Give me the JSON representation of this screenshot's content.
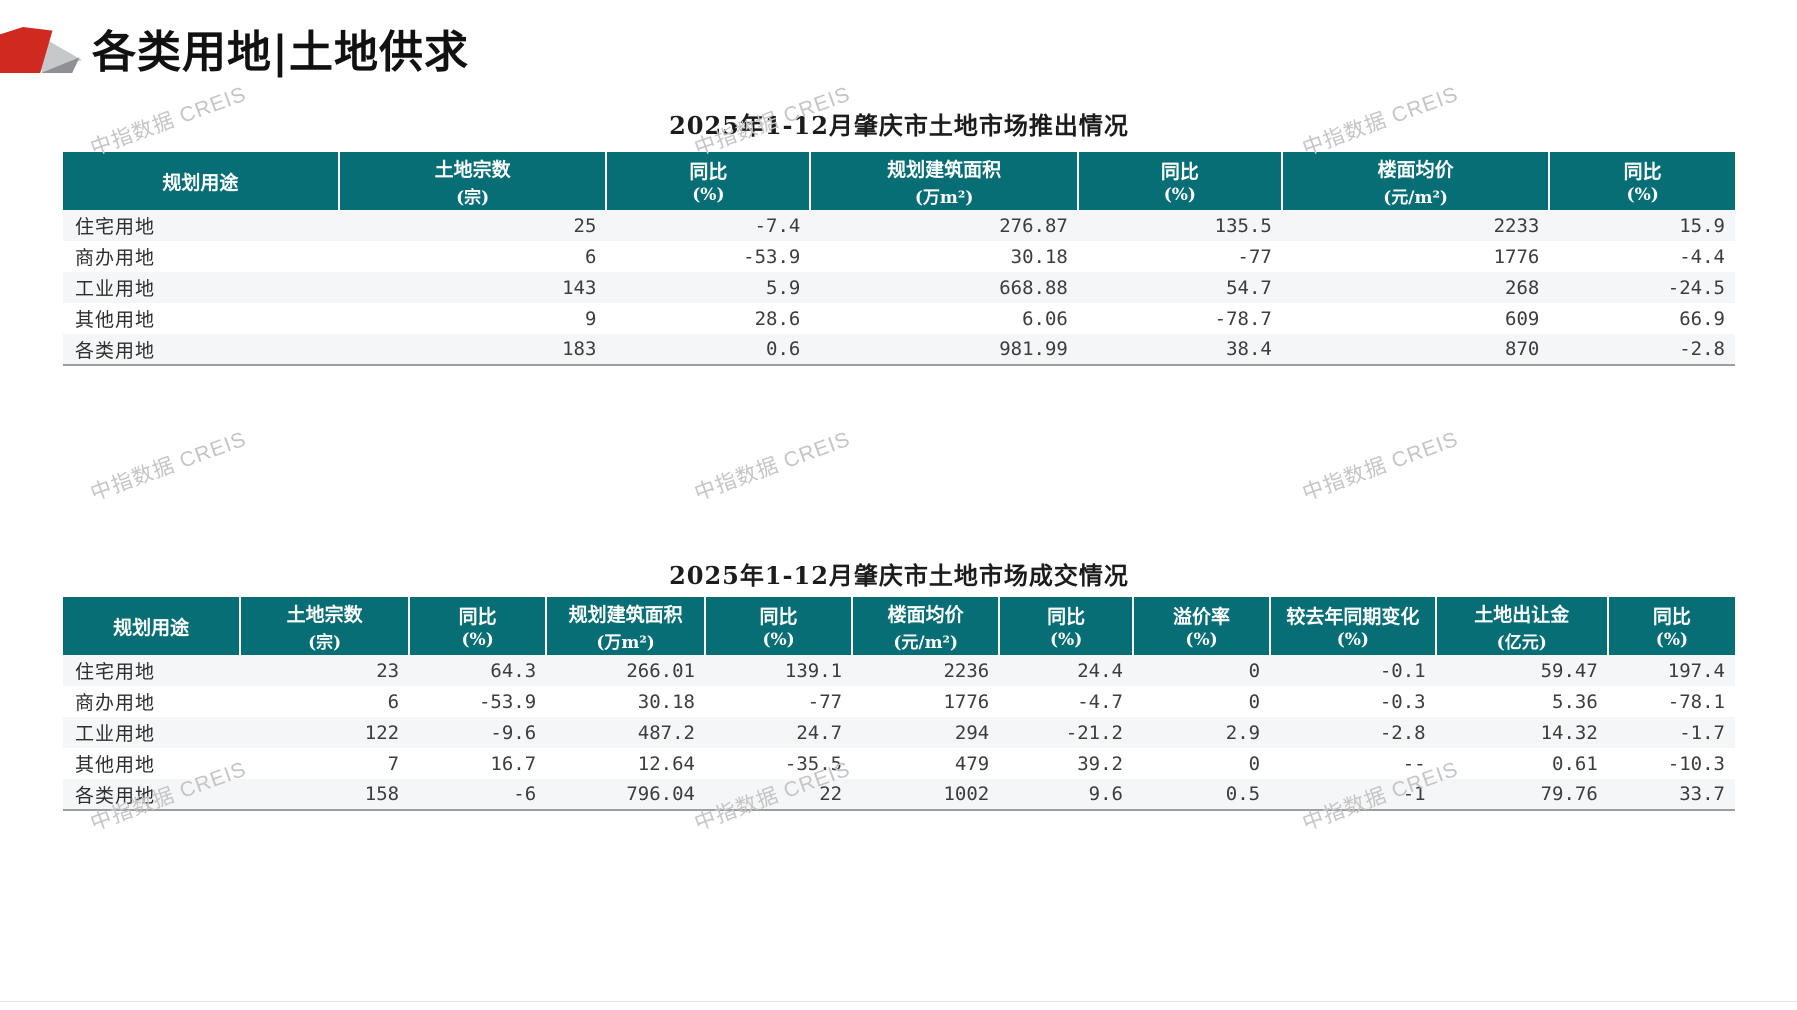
{
  "page": {
    "title": "各类用地|土地供求",
    "watermark": "中指数据 CREIS"
  },
  "colors": {
    "header_teal": "#086e75",
    "logo_red": "#d02920",
    "logo_gray_light": "#c7c8ca",
    "logo_gray_dark": "#8e9093",
    "row_stripe": "#f5f6f8",
    "watermark_gray": "#c5c5c5"
  },
  "supply_table": {
    "title": "2025年1-12月肇庆市土地市场推出情况",
    "columns": [
      {
        "label": "规划用途",
        "unit": ""
      },
      {
        "label": "土地宗数",
        "unit": "(宗)"
      },
      {
        "label": "同比",
        "unit": "(%)"
      },
      {
        "label": "规划建筑面积",
        "unit": "(万m²)"
      },
      {
        "label": "同比",
        "unit": "(%)"
      },
      {
        "label": "楼面均价",
        "unit": "(元/m²)"
      },
      {
        "label": "同比",
        "unit": "(%)"
      }
    ],
    "rows": [
      [
        "住宅用地",
        "25",
        "-7.4",
        "276.87",
        "135.5",
        "2233",
        "15.9"
      ],
      [
        "商办用地",
        "6",
        "-53.9",
        "30.18",
        "-77",
        "1776",
        "-4.4"
      ],
      [
        "工业用地",
        "143",
        "5.9",
        "668.88",
        "54.7",
        "268",
        "-24.5"
      ],
      [
        "其他用地",
        "9",
        "28.6",
        "6.06",
        "-78.7",
        "609",
        "66.9"
      ],
      [
        "各类用地",
        "183",
        "0.6",
        "981.99",
        "38.4",
        "870",
        "-2.8"
      ]
    ]
  },
  "deal_table": {
    "title": "2025年1-12月肇庆市土地市场成交情况",
    "columns": [
      {
        "label": "规划用途",
        "unit": ""
      },
      {
        "label": "土地宗数",
        "unit": "(宗)"
      },
      {
        "label": "同比",
        "unit": "(%)"
      },
      {
        "label": "规划建筑面积",
        "unit": "(万m²)"
      },
      {
        "label": "同比",
        "unit": "(%)"
      },
      {
        "label": "楼面均价",
        "unit": "(元/m²)"
      },
      {
        "label": "同比",
        "unit": "(%)"
      },
      {
        "label": "溢价率",
        "unit": "(%)"
      },
      {
        "label": "较去年同期变化",
        "unit": "(%)"
      },
      {
        "label": "土地出让金",
        "unit": "(亿元)"
      },
      {
        "label": "同比",
        "unit": "(%)"
      }
    ],
    "rows": [
      [
        "住宅用地",
        "23",
        "64.3",
        "266.01",
        "139.1",
        "2236",
        "24.4",
        "0",
        "-0.1",
        "59.47",
        "197.4"
      ],
      [
        "商办用地",
        "6",
        "-53.9",
        "30.18",
        "-77",
        "1776",
        "-4.7",
        "0",
        "-0.3",
        "5.36",
        "-78.1"
      ],
      [
        "工业用地",
        "122",
        "-9.6",
        "487.2",
        "24.7",
        "294",
        "-21.2",
        "2.9",
        "-2.8",
        "14.32",
        "-1.7"
      ],
      [
        "其他用地",
        "7",
        "16.7",
        "12.64",
        "-35.5",
        "479",
        "39.2",
        "0",
        "--",
        "0.61",
        "-10.3"
      ],
      [
        "各类用地",
        "158",
        "-6",
        "796.04",
        "22",
        "1002",
        "9.6",
        "0.5",
        "-1",
        "79.76",
        "33.7"
      ]
    ]
  }
}
